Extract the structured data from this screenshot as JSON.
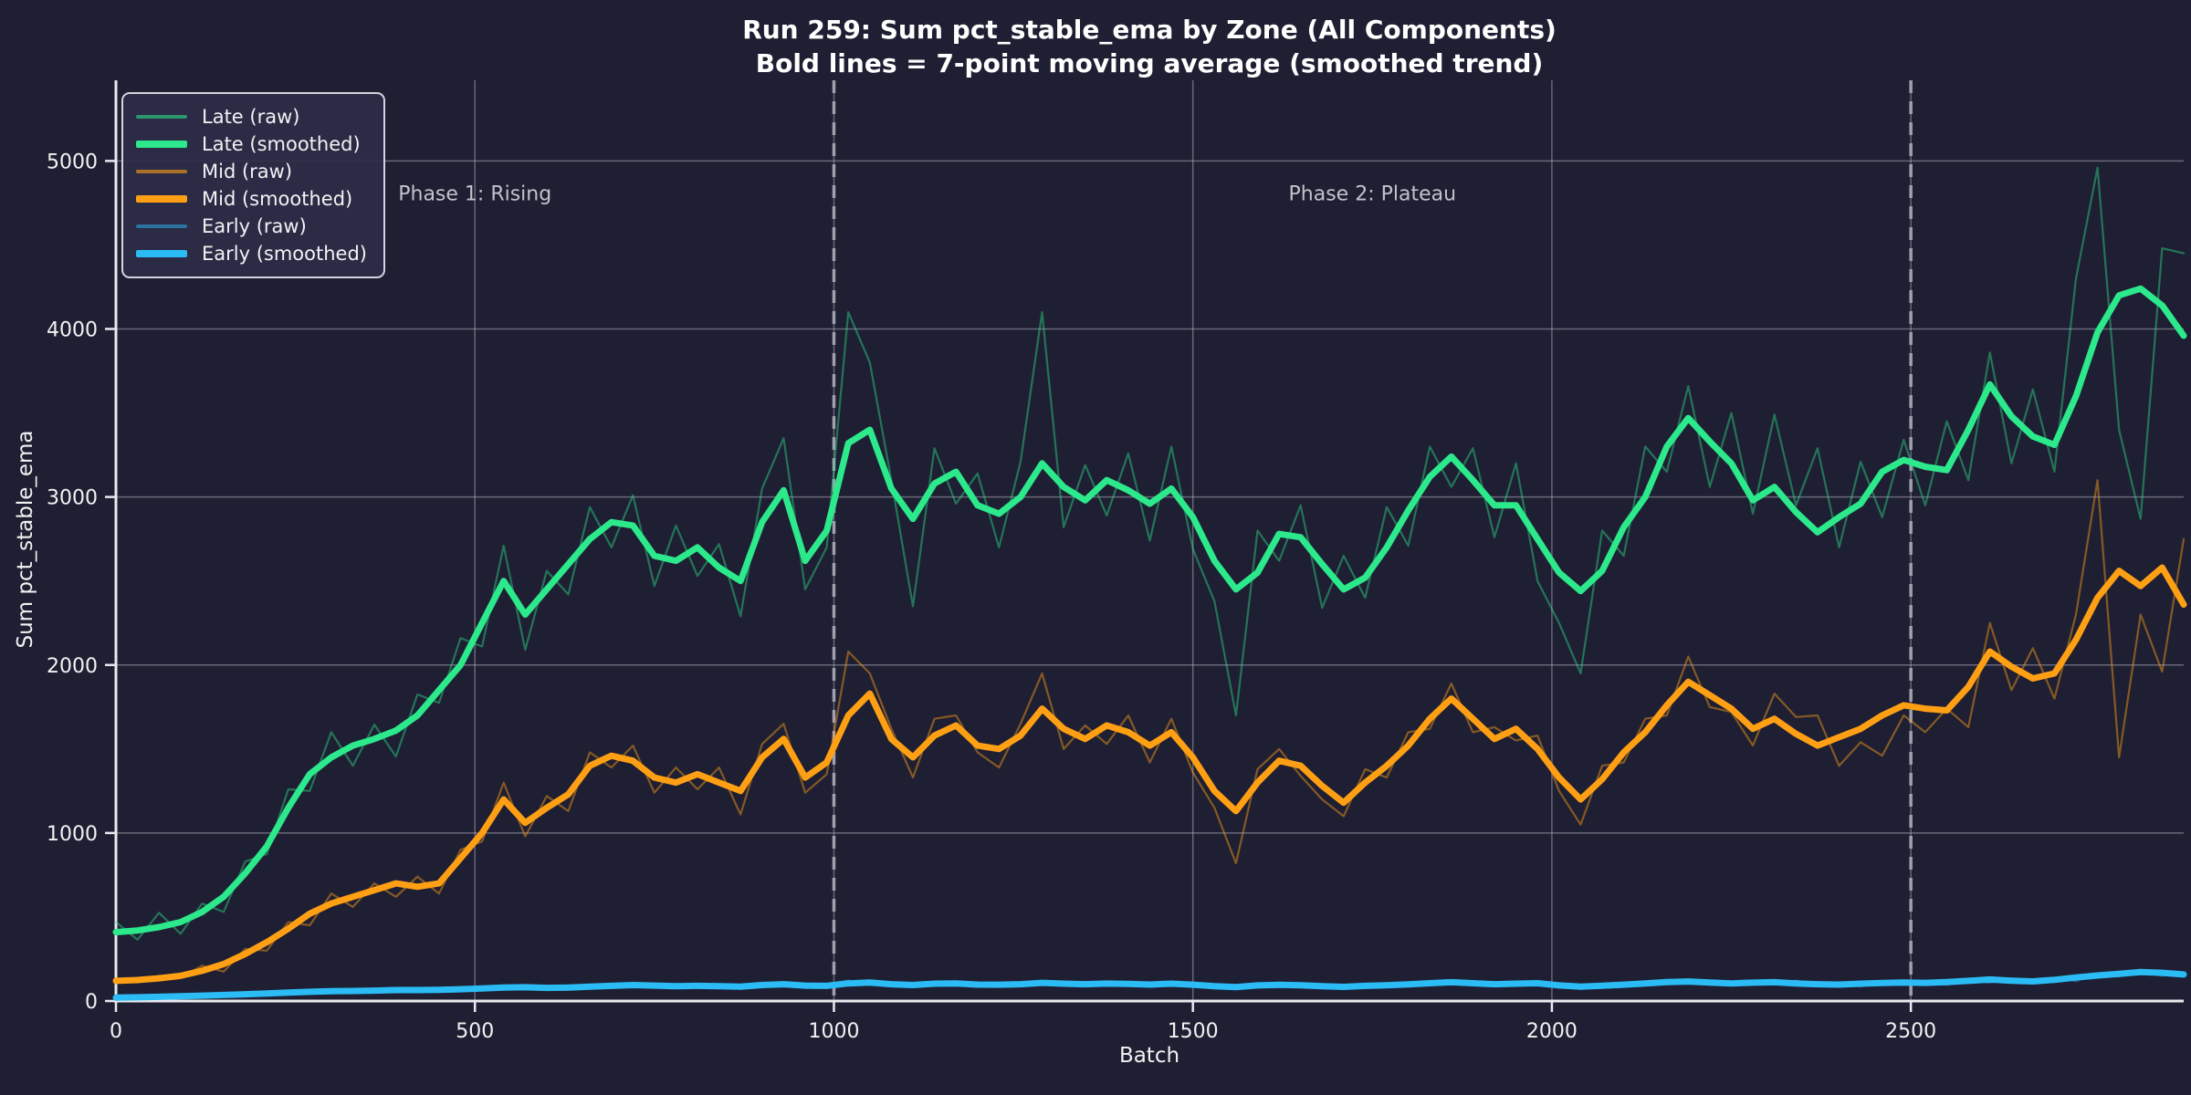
{
  "title": {
    "line1": "Run 259: Sum pct_stable_ema by Zone (All Components)",
    "line2": "Bold lines = 7-point moving average (smoothed trend)"
  },
  "colors": {
    "background": "#1f1f33",
    "late": "#2ce98c",
    "mid": "#ffa014",
    "early": "#2bbcf5",
    "grid": "rgba(203,203,214,0.42)",
    "phase_line": "#9fa0ae",
    "spine": "#e9e9ef",
    "text": "#f2f2f3",
    "annotation_text": "#c2c2cb"
  },
  "chart_data": {
    "type": "line",
    "title": "Run 259: Sum pct_stable_ema by Zone (All Components)",
    "subtitle": "Bold lines = 7-point moving average (smoothed trend)",
    "xlabel": "Batch",
    "ylabel": "Sum pct_stable_ema",
    "xlim": [
      0,
      2880
    ],
    "ylim": [
      0,
      5480
    ],
    "xticks": [
      0,
      500,
      1000,
      1500,
      2000,
      2500
    ],
    "yticks": [
      0,
      1000,
      2000,
      3000,
      4000,
      5000
    ],
    "grid": true,
    "legend_position": "upper left",
    "smoothing_window": 7,
    "x": [
      0,
      30,
      60,
      90,
      120,
      150,
      180,
      210,
      240,
      270,
      300,
      330,
      360,
      390,
      420,
      450,
      480,
      510,
      540,
      570,
      600,
      630,
      660,
      690,
      720,
      750,
      780,
      810,
      840,
      870,
      900,
      930,
      960,
      990,
      1020,
      1050,
      1080,
      1110,
      1140,
      1170,
      1200,
      1230,
      1260,
      1290,
      1320,
      1350,
      1380,
      1410,
      1440,
      1470,
      1500,
      1530,
      1560,
      1590,
      1620,
      1650,
      1680,
      1710,
      1740,
      1770,
      1800,
      1830,
      1860,
      1890,
      1920,
      1950,
      1980,
      2010,
      2040,
      2070,
      2100,
      2130,
      2160,
      2190,
      2220,
      2250,
      2280,
      2310,
      2340,
      2370,
      2400,
      2430,
      2460,
      2490,
      2520,
      2550,
      2580,
      2610,
      2640,
      2670,
      2700,
      2730,
      2760,
      2790,
      2820,
      2850,
      2880
    ],
    "series": [
      {
        "name": "Late (raw)",
        "zone": "Late",
        "kind": "raw",
        "color": "#2ce98c",
        "opacity": 0.42,
        "width": 2.2,
        "values": [
          470,
          365,
          525,
          400,
          580,
          530,
          830,
          875,
          1260,
          1250,
          1600,
          1400,
          1645,
          1455,
          1825,
          1775,
          2160,
          2110,
          2710,
          2090,
          2560,
          2420,
          2940,
          2700,
          3010,
          2470,
          2830,
          2530,
          2720,
          2290,
          3050,
          3350,
          2450,
          2700,
          4100,
          3800,
          3100,
          2350,
          3290,
          2960,
          3140,
          2700,
          3210,
          4100,
          2820,
          3190,
          2890,
          3260,
          2740,
          3300,
          2690,
          2380,
          1700,
          2800,
          2620,
          2950,
          2340,
          2650,
          2400,
          2940,
          2710,
          3300,
          3060,
          3290,
          2760,
          3200,
          2500,
          2250,
          1950,
          2800,
          2650,
          3300,
          3150,
          3660,
          3060,
          3500,
          2900,
          3490,
          2950,
          3290,
          2700,
          3210,
          2880,
          3340,
          2950,
          3450,
          3100,
          3860,
          3200,
          3640,
          3150,
          4300,
          4960,
          3400,
          2870,
          4480,
          4450
        ]
      },
      {
        "name": "Late (smoothed)",
        "zone": "Late",
        "kind": "smoothed",
        "color": "#2ce98c",
        "opacity": 1,
        "width": 7,
        "values": [
          410,
          420,
          440,
          470,
          530,
          620,
          760,
          920,
          1150,
          1350,
          1450,
          1520,
          1560,
          1610,
          1700,
          1850,
          2000,
          2250,
          2500,
          2300,
          2450,
          2600,
          2750,
          2850,
          2830,
          2650,
          2620,
          2700,
          2580,
          2500,
          2850,
          3040,
          2620,
          2800,
          3320,
          3400,
          3050,
          2870,
          3080,
          3150,
          2950,
          2900,
          3000,
          3200,
          3060,
          2980,
          3100,
          3040,
          2960,
          3050,
          2880,
          2620,
          2450,
          2550,
          2780,
          2760,
          2600,
          2450,
          2520,
          2700,
          2920,
          3120,
          3240,
          3100,
          2950,
          2950,
          2750,
          2550,
          2440,
          2560,
          2820,
          3000,
          3300,
          3470,
          3330,
          3200,
          2980,
          3060,
          2910,
          2790,
          2880,
          2960,
          3150,
          3220,
          3180,
          3160,
          3400,
          3670,
          3480,
          3360,
          3310,
          3600,
          3980,
          4200,
          4240,
          4140,
          3960
        ]
      },
      {
        "name": "Mid (raw)",
        "zone": "Mid",
        "kind": "raw",
        "color": "#ffa014",
        "opacity": 0.45,
        "width": 2.2,
        "values": [
          135,
          110,
          150,
          140,
          210,
          175,
          310,
          300,
          470,
          450,
          640,
          560,
          700,
          620,
          740,
          640,
          900,
          950,
          1300,
          980,
          1220,
          1130,
          1480,
          1390,
          1520,
          1240,
          1390,
          1260,
          1390,
          1110,
          1530,
          1650,
          1240,
          1350,
          2080,
          1950,
          1620,
          1330,
          1680,
          1700,
          1480,
          1390,
          1650,
          1950,
          1500,
          1640,
          1530,
          1700,
          1420,
          1680,
          1360,
          1150,
          820,
          1380,
          1500,
          1340,
          1200,
          1100,
          1380,
          1330,
          1600,
          1620,
          1890,
          1600,
          1630,
          1550,
          1580,
          1250,
          1050,
          1400,
          1420,
          1680,
          1700,
          2050,
          1750,
          1720,
          1520,
          1830,
          1690,
          1700,
          1400,
          1540,
          1460,
          1700,
          1600,
          1740,
          1630,
          2250,
          1850,
          2100,
          1800,
          2300,
          3100,
          1450,
          2300,
          1960,
          2750
        ]
      },
      {
        "name": "Mid (smoothed)",
        "zone": "Mid",
        "kind": "smoothed",
        "color": "#ffa014",
        "opacity": 1,
        "width": 7,
        "values": [
          120,
          125,
          135,
          150,
          180,
          220,
          280,
          350,
          430,
          520,
          580,
          620,
          660,
          700,
          680,
          700,
          850,
          1000,
          1200,
          1060,
          1150,
          1230,
          1400,
          1460,
          1430,
          1330,
          1300,
          1350,
          1300,
          1250,
          1450,
          1560,
          1330,
          1420,
          1700,
          1830,
          1560,
          1450,
          1580,
          1640,
          1520,
          1500,
          1580,
          1740,
          1620,
          1560,
          1640,
          1600,
          1520,
          1600,
          1450,
          1250,
          1130,
          1300,
          1430,
          1400,
          1280,
          1180,
          1300,
          1400,
          1520,
          1680,
          1800,
          1680,
          1560,
          1620,
          1500,
          1330,
          1200,
          1320,
          1480,
          1600,
          1760,
          1900,
          1820,
          1740,
          1620,
          1680,
          1590,
          1520,
          1570,
          1620,
          1700,
          1760,
          1740,
          1730,
          1870,
          2080,
          1990,
          1920,
          1950,
          2150,
          2400,
          2560,
          2470,
          2580,
          2360
        ]
      },
      {
        "name": "Early (raw)",
        "zone": "Early",
        "kind": "raw",
        "color": "#2bbcf5",
        "opacity": 0.35,
        "width": 2.2,
        "values": [
          25,
          15,
          30,
          20,
          40,
          25,
          50,
          35,
          60,
          45,
          70,
          50,
          72,
          52,
          75,
          55,
          80,
          62,
          92,
          72,
          68,
          88,
          75,
          102,
          85,
          100,
          78,
          100,
          76,
          95,
          85,
          112,
          80,
          98,
          122,
          96,
          108,
          83,
          115,
          93,
          108,
          85,
          112,
          96,
          113,
          88,
          116,
          90,
          108,
          91,
          107,
          76,
          93,
          81,
          106,
          82,
          98,
          72,
          100,
          82,
          109,
          94,
          124,
          94,
          110,
          91,
          116,
          81,
          95,
          79,
          107,
          93,
          125,
          104,
          120,
          93,
          119,
          97,
          122,
          93,
          110,
          86,
          113,
          95,
          120,
          96,
          125,
          108,
          133,
          109,
          138,
          118,
          164,
          146,
          180,
          150,
          162
        ]
      },
      {
        "name": "Early (smoothed)",
        "zone": "Early",
        "kind": "smoothed",
        "color": "#2bbcf5",
        "opacity": 1,
        "width": 7,
        "values": [
          20,
          22,
          25,
          28,
          32,
          36,
          40,
          45,
          50,
          55,
          58,
          60,
          62,
          65,
          65,
          67,
          70,
          75,
          80,
          82,
          78,
          80,
          85,
          90,
          95,
          92,
          88,
          90,
          88,
          85,
          95,
          100,
          92,
          90,
          105,
          110,
          100,
          95,
          103,
          105,
          98,
          97,
          100,
          108,
          103,
          100,
          104,
          102,
          98,
          103,
          97,
          88,
          83,
          93,
          96,
          94,
          88,
          84,
          90,
          94,
          99,
          106,
          112,
          106,
          100,
          103,
          106,
          93,
          85,
          91,
          97,
          105,
          113,
          116,
          110,
          105,
          109,
          112,
          105,
          100,
          98,
          103,
          107,
          110,
          108,
          113,
          120,
          128,
          121,
          117,
          126,
          140,
          152,
          162,
          172,
          168,
          158
        ]
      }
    ],
    "annotations": [
      {
        "text": "Phase 1: Rising",
        "x": 500,
        "y": 4800
      },
      {
        "text": "Phase 2: Plateau",
        "x": 1750,
        "y": 4800
      }
    ],
    "vlines": [
      {
        "x": 1000
      },
      {
        "x": 2500
      }
    ]
  },
  "legend": {
    "items": [
      {
        "series_index": 0
      },
      {
        "series_index": 1
      },
      {
        "series_index": 2
      },
      {
        "series_index": 3
      },
      {
        "series_index": 4
      },
      {
        "series_index": 5
      }
    ]
  }
}
